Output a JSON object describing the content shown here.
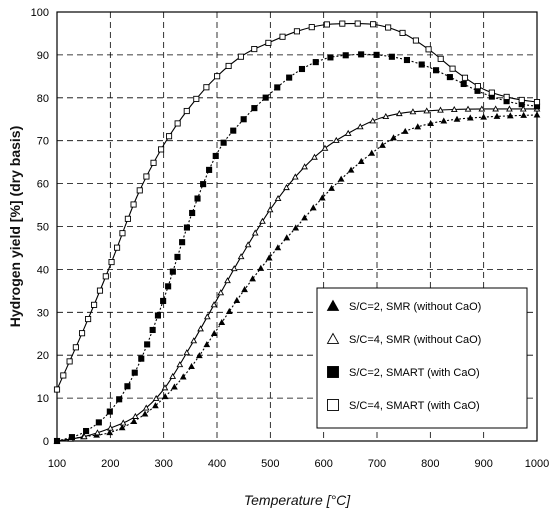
{
  "chart_data": {
    "type": "line",
    "title": "",
    "xlabel": "Temperature [°C]",
    "ylabel": "Hydrogen yield [%] (dry basis)",
    "xlim": [
      100,
      1000
    ],
    "ylim": [
      0,
      100
    ],
    "xticks": [
      100,
      200,
      300,
      400,
      500,
      600,
      700,
      800,
      900,
      1000
    ],
    "yticks": [
      0,
      10,
      20,
      30,
      40,
      50,
      60,
      70,
      80,
      90,
      100
    ],
    "grid": true,
    "grid_style": "dashed",
    "legend_position": "bottom-right",
    "series": [
      {
        "name": "S/C=2, SMR (without CaO)",
        "marker": "filled-triangle",
        "line_style": "dotted",
        "color": "#000000",
        "x": [
          100,
          150,
          200,
          250,
          300,
          350,
          400,
          450,
          500,
          550,
          600,
          650,
          700,
          750,
          800,
          850,
          900,
          950,
          1000
        ],
        "y": [
          0,
          1,
          2,
          5,
          10,
          17,
          26,
          35,
          43,
          50,
          57,
          63,
          68,
          72,
          74,
          75,
          75.5,
          75.8,
          76
        ]
      },
      {
        "name": "S/C=4, SMR (without CaO)",
        "marker": "open-triangle",
        "line_style": "solid",
        "color": "#000000",
        "x": [
          100,
          150,
          200,
          250,
          300,
          350,
          400,
          450,
          500,
          550,
          600,
          650,
          700,
          750,
          800,
          850,
          900,
          950,
          1000
        ],
        "y": [
          0,
          1,
          3,
          6,
          12,
          22,
          33,
          44,
          54,
          62,
          68,
          72,
          75,
          76.5,
          77,
          77.3,
          77.4,
          77.4,
          77.4
        ]
      },
      {
        "name": "S/C=2, SMART (with CaO)",
        "marker": "filled-square",
        "line_style": "dotted",
        "color": "#000000",
        "x": [
          100,
          150,
          200,
          250,
          300,
          350,
          400,
          450,
          500,
          550,
          600,
          650,
          700,
          750,
          800,
          850,
          900,
          950,
          1000
        ],
        "y": [
          0,
          2,
          7,
          17,
          33,
          52,
          67,
          75,
          81,
          86,
          89,
          90,
          90,
          89,
          87,
          84,
          81,
          79,
          78
        ]
      },
      {
        "name": "S/C=4, SMART (with CaO)",
        "marker": "open-square",
        "line_style": "solid",
        "color": "#000000",
        "x": [
          100,
          150,
          200,
          250,
          300,
          350,
          400,
          450,
          500,
          550,
          600,
          650,
          700,
          750,
          800,
          850,
          900,
          950,
          1000
        ],
        "y": [
          12,
          26,
          41,
          57,
          69,
          78,
          85,
          90,
          93,
          95.5,
          97,
          97.3,
          97,
          95,
          91,
          86,
          82,
          80,
          79
        ]
      }
    ]
  }
}
